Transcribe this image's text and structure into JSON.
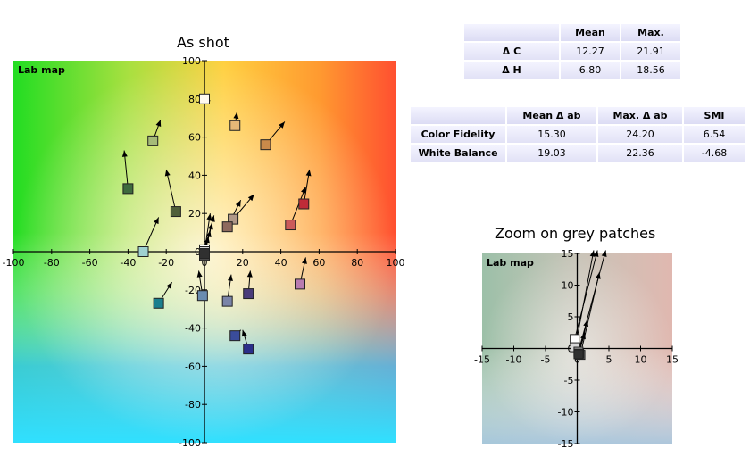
{
  "chart_data": [
    {
      "type": "scatter",
      "title": "As shot",
      "panel_label": "Lab map",
      "xlim": [
        -100,
        100
      ],
      "ylim": [
        -100,
        100
      ],
      "xticks": [
        -100,
        -80,
        -60,
        -40,
        -20,
        0,
        20,
        40,
        60,
        80,
        100
      ],
      "yticks": [
        -100,
        -80,
        -60,
        -40,
        -20,
        0,
        20,
        40,
        60,
        80,
        100
      ],
      "patches": [
        {
          "a": -40,
          "b": 33,
          "ta": -42,
          "tb": 53,
          "color": "#3e6a3e"
        },
        {
          "a": -27,
          "b": 58,
          "ta": -23,
          "tb": 69,
          "color": "#a6bb78"
        },
        {
          "a": -15,
          "b": 21,
          "ta": -20,
          "tb": 43,
          "color": "#4f5f3a"
        },
        {
          "a": -32,
          "b": 0,
          "ta": -24,
          "tb": 18,
          "color": "#9fd1d1"
        },
        {
          "a": -24,
          "b": -27,
          "ta": -17,
          "tb": -16,
          "color": "#1a7f8e"
        },
        {
          "a": 0,
          "b": 80,
          "ta": 3,
          "tb": 79,
          "color": "#fffaf0"
        },
        {
          "a": 16,
          "b": 66,
          "ta": 17,
          "tb": 73,
          "color": "#e6b878"
        },
        {
          "a": 32,
          "b": 56,
          "ta": 42,
          "tb": 68,
          "color": "#c98a4a"
        },
        {
          "a": 15,
          "b": 17,
          "ta": 26,
          "tb": 30,
          "color": "#b09888"
        },
        {
          "a": 12,
          "b": 13,
          "ta": 19,
          "tb": 27,
          "color": "#8e6a5e"
        },
        {
          "a": 45,
          "b": 14,
          "ta": 53,
          "tb": 34,
          "color": "#cc5a5a"
        },
        {
          "a": 52,
          "b": 25,
          "ta": 55,
          "tb": 43,
          "color": "#c02c38"
        },
        {
          "a": 50,
          "b": -17,
          "ta": 53,
          "tb": -3,
          "color": "#b87bb0"
        },
        {
          "a": 23,
          "b": -22,
          "ta": 24,
          "tb": -10,
          "color": "#4a3c7a"
        },
        {
          "a": 12,
          "b": -26,
          "ta": 14,
          "tb": -12,
          "color": "#7a84a8"
        },
        {
          "a": -1,
          "b": -23,
          "ta": -3,
          "tb": -10,
          "color": "#6a8cb0"
        },
        {
          "a": 16,
          "b": -44,
          "ta": 19,
          "tb": -41,
          "color": "#3a4c9a"
        },
        {
          "a": 23,
          "b": -51,
          "ta": 20,
          "tb": -41,
          "color": "#2a2e8a"
        },
        {
          "a": 0,
          "b": 1,
          "ta": 5,
          "tb": 19,
          "color": "#ffffff"
        },
        {
          "a": 0,
          "b": 0,
          "ta": 3,
          "tb": 20,
          "color": "#d0d0d0"
        },
        {
          "a": 0,
          "b": -1,
          "ta": 4,
          "tb": 15,
          "color": "#a0a0a0"
        },
        {
          "a": 0,
          "b": -1,
          "ta": 3,
          "tb": 11,
          "color": "#707070"
        },
        {
          "a": 0,
          "b": -2,
          "ta": 2,
          "tb": 8,
          "color": "#505050"
        },
        {
          "a": 0,
          "b": -1,
          "ta": 1,
          "tb": 4,
          "color": "#303030"
        }
      ]
    },
    {
      "type": "scatter",
      "title": "Zoom on grey patches",
      "panel_label": "Lab map",
      "xlim": [
        -15,
        15
      ],
      "ylim": [
        -15,
        15
      ],
      "xticks": [
        -15,
        -10,
        -5,
        0,
        5,
        10,
        15
      ],
      "yticks": [
        -15,
        -10,
        -5,
        0,
        5,
        10,
        15
      ],
      "patches": [
        {
          "a": -0.4,
          "b": 1.5,
          "ta": 3.2,
          "tb": 15.5,
          "color": "#ffffff"
        },
        {
          "a": -0.3,
          "b": 0.2,
          "ta": 2.6,
          "tb": 15.5,
          "color": "#d8d8d8"
        },
        {
          "a": 0.2,
          "b": -0.5,
          "ta": 4.5,
          "tb": 15.5,
          "color": "#a8a8a8"
        },
        {
          "a": 0.5,
          "b": -1.0,
          "ta": 3.5,
          "tb": 12,
          "color": "#787878"
        },
        {
          "a": 0.3,
          "b": -0.8,
          "ta": 1.6,
          "tb": 4.5,
          "color": "#505050"
        },
        {
          "a": 0.2,
          "b": -0.9,
          "ta": 1.2,
          "tb": 2.5,
          "color": "#303030"
        }
      ]
    }
  ],
  "table_chroma": {
    "headers": [
      "",
      "Mean",
      "Max."
    ],
    "rows": [
      [
        "Δ C",
        "12.27",
        "21.91"
      ],
      [
        "Δ H",
        "6.80",
        "18.56"
      ]
    ]
  },
  "table_fidelity": {
    "headers": [
      "",
      "Mean Δ ab",
      "Max. Δ ab",
      "SMI"
    ],
    "rows": [
      [
        "Color Fidelity",
        "15.30",
        "24.20",
        "6.54"
      ],
      [
        "White Balance",
        "19.03",
        "22.36",
        "-4.68"
      ]
    ]
  }
}
